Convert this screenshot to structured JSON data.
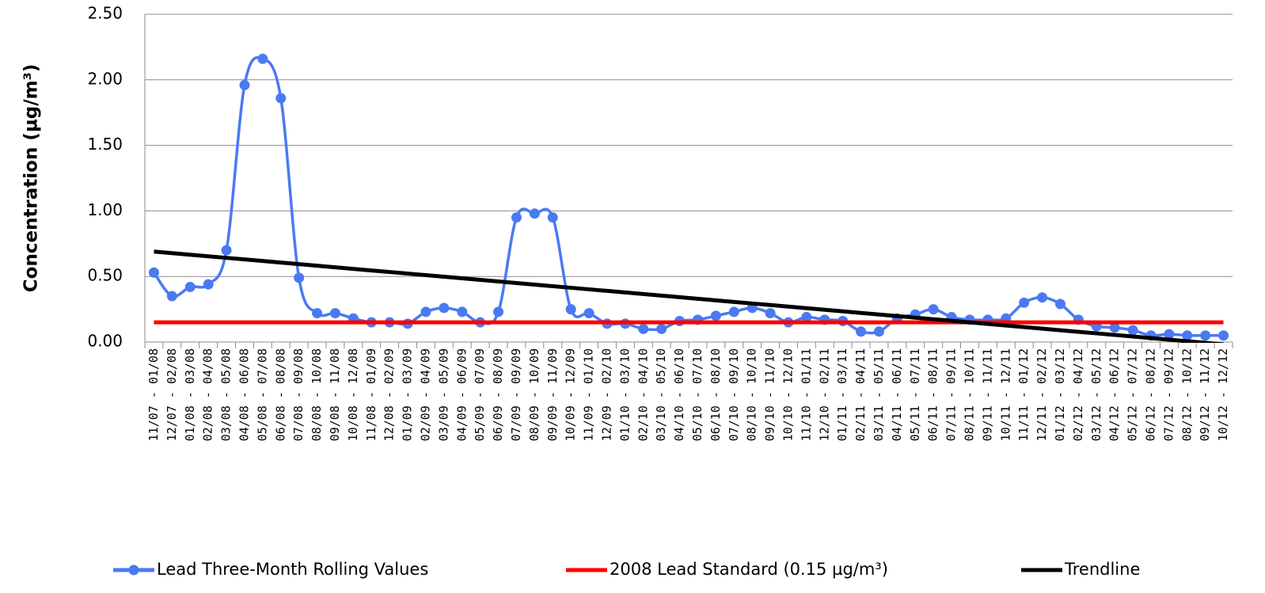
{
  "chart_data": {
    "type": "line",
    "ylabel": "Concentration (µg/m³)",
    "categories": [
      "11/07 - 01/08",
      "12/07 - 02/08",
      "01/08 - 03/08",
      "02/08 - 04/08",
      "03/08 - 05/08",
      "04/08 - 06/08",
      "05/08 - 07/08",
      "06/08 - 08/08",
      "07/08 - 09/08",
      "08/08 - 10/08",
      "09/08 - 11/08",
      "10/08 - 12/08",
      "11/08 - 01/09",
      "12/08 - 02/09",
      "01/09 - 03/09",
      "02/09 - 04/09",
      "03/09 - 05/09",
      "04/09 - 06/09",
      "05/09 - 07/09",
      "06/09 - 08/09",
      "07/09 - 09/09",
      "08/09 - 10/09",
      "09/09 - 11/09",
      "10/09 - 12/09",
      "11/09 - 01/10",
      "12/09 - 02/10",
      "01/10 - 03/10",
      "02/10 - 04/10",
      "03/10 - 05/10",
      "04/10 - 06/10",
      "05/10 - 07/10",
      "06/10 - 08/10",
      "07/10 - 09/10",
      "08/10 - 10/10",
      "09/10 - 11/10",
      "10/10 - 12/10",
      "11/10 - 01/11",
      "12/10 - 02/11",
      "01/11 - 03/11",
      "02/11 - 04/11",
      "03/11 - 05/11",
      "04/11 - 06/11",
      "05/11 - 07/11",
      "06/11 - 08/11",
      "07/11 - 09/11",
      "08/11 - 10/11",
      "09/11 - 11/11",
      "10/11 - 12/11",
      "11/11 - 01/12",
      "12/11 - 02/12",
      "01/12 - 03/12",
      "02/12 - 04/12",
      "03/12 - 05/12",
      "04/12 - 06/12",
      "05/12 - 07/12",
      "06/12 - 08/12",
      "07/12 - 09/12",
      "08/12 - 10/12",
      "09/12 - 11/12",
      "10/12 - 12/12"
    ],
    "series": [
      {
        "name": "Lead Three-Month Rolling Values",
        "color": "#4a7af2",
        "marker": true,
        "smooth": true,
        "values": [
          0.53,
          0.35,
          0.42,
          0.44,
          0.7,
          1.96,
          2.16,
          1.86,
          0.49,
          0.22,
          0.22,
          0.18,
          0.15,
          0.15,
          0.14,
          0.23,
          0.26,
          0.23,
          0.15,
          0.23,
          0.95,
          0.98,
          0.95,
          0.25,
          0.22,
          0.14,
          0.14,
          0.1,
          0.1,
          0.16,
          0.17,
          0.2,
          0.23,
          0.26,
          0.22,
          0.15,
          0.19,
          0.17,
          0.16,
          0.08,
          0.08,
          0.18,
          0.21,
          0.25,
          0.19,
          0.17,
          0.17,
          0.18,
          0.3,
          0.34,
          0.29,
          0.17,
          0.12,
          0.11,
          0.09,
          0.05,
          0.06,
          0.05,
          0.05,
          0.05
        ]
      },
      {
        "name": "2008 Lead Standard (0.15 µg/m³)",
        "color": "#ff0000",
        "marker": false,
        "smooth": false,
        "values": [
          0.15,
          0.15,
          0.15,
          0.15,
          0.15,
          0.15,
          0.15,
          0.15,
          0.15,
          0.15,
          0.15,
          0.15,
          0.15,
          0.15,
          0.15,
          0.15,
          0.15,
          0.15,
          0.15,
          0.15,
          0.15,
          0.15,
          0.15,
          0.15,
          0.15,
          0.15,
          0.15,
          0.15,
          0.15,
          0.15,
          0.15,
          0.15,
          0.15,
          0.15,
          0.15,
          0.15,
          0.15,
          0.15,
          0.15,
          0.15,
          0.15,
          0.15,
          0.15,
          0.15,
          0.15,
          0.15,
          0.15,
          0.15,
          0.15,
          0.15,
          0.15,
          0.15,
          0.15,
          0.15,
          0.15,
          0.15,
          0.15,
          0.15,
          0.15,
          0.15
        ]
      },
      {
        "name": "Trendline",
        "color": "#000000",
        "marker": false,
        "smooth": false,
        "values": [
          0.69,
          0.678,
          0.666,
          0.654,
          0.642,
          0.63,
          0.618,
          0.606,
          0.594,
          0.582,
          0.57,
          0.558,
          0.546,
          0.534,
          0.522,
          0.51,
          0.498,
          0.486,
          0.474,
          0.462,
          0.45,
          0.438,
          0.426,
          0.414,
          0.402,
          0.39,
          0.378,
          0.366,
          0.354,
          0.342,
          0.33,
          0.318,
          0.306,
          0.294,
          0.282,
          0.27,
          0.258,
          0.246,
          0.234,
          0.222,
          0.21,
          0.198,
          0.186,
          0.174,
          0.162,
          0.15,
          0.138,
          0.126,
          0.114,
          0.102,
          0.09,
          0.078,
          0.066,
          0.054,
          0.042,
          0.03,
          0.018,
          0.006,
          -0.006,
          -0.018
        ]
      }
    ],
    "ylim": [
      0,
      2.5
    ],
    "yticks": [
      {
        "value": 0,
        "label": "0.00"
      },
      {
        "value": 0.5,
        "label": "0.50"
      },
      {
        "value": 1,
        "label": "1.00"
      },
      {
        "value": 1.5,
        "label": "1.50"
      },
      {
        "value": 2,
        "label": "2.00"
      },
      {
        "value": 2.5,
        "label": "2.50"
      }
    ],
    "grid": true,
    "legend": "bottom"
  }
}
